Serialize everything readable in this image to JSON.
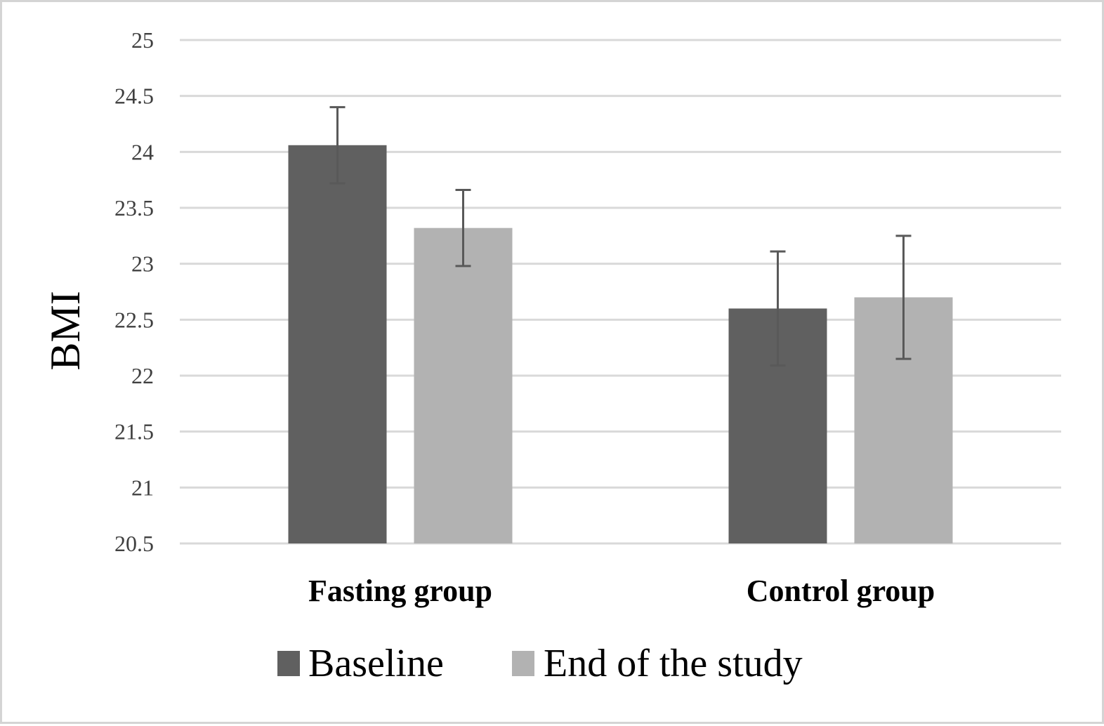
{
  "chart_data": {
    "type": "bar",
    "categories": [
      "Fasting group",
      "Control group"
    ],
    "series": [
      {
        "name": "Baseline",
        "values": [
          24.06,
          22.6
        ],
        "error": [
          0.34,
          0.51
        ],
        "color": "#606060"
      },
      {
        "name": "End of the study",
        "values": [
          23.32,
          22.7
        ],
        "error": [
          0.34,
          0.55
        ],
        "color": "#b2b2b2"
      }
    ],
    "ylabel": "BMI",
    "xlabel": "",
    "title": "",
    "ylim": [
      20.5,
      25
    ],
    "yticks": [
      "25",
      "24.5",
      "24",
      "23.5",
      "23",
      "22.5",
      "22",
      "21.5",
      "21",
      "20.5"
    ],
    "grid": true,
    "legend_position": "bottom",
    "colors": {
      "gridline": "#d9d9d9",
      "errorbar": "#595959",
      "frame": "#d4d4d4"
    }
  }
}
